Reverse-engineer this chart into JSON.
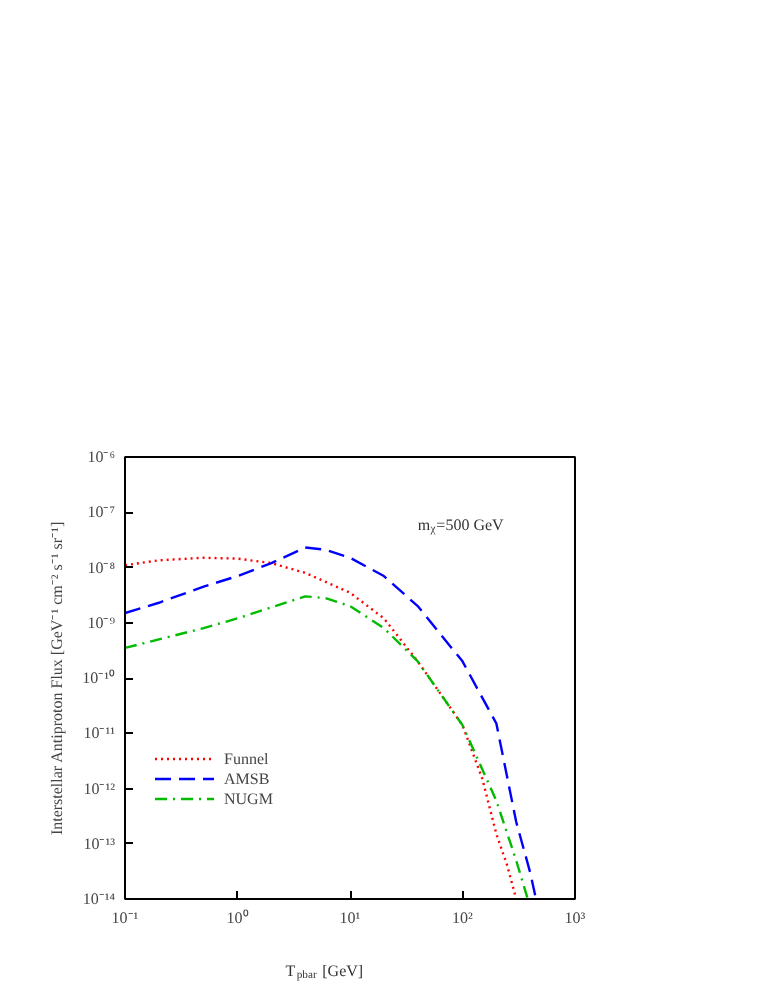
{
  "chart_data": {
    "type": "line",
    "xlabel": "T$_{pbar}$ [GeV]",
    "ylabel": "Interstellar Antiproton Flux [GeV⁻¹ cm⁻² s⁻¹ sr⁻¹]",
    "log": "xy",
    "legend": "left",
    "grid": false,
    "xlim": [
      0.1,
      1000
    ],
    "ylim": [
      1e-14,
      1e-06
    ],
    "xticks": [
      {
        "value": 0.1,
        "label": "10⁻¹"
      },
      {
        "value": 1,
        "label": "10⁰"
      },
      {
        "value": 10,
        "label": "10¹"
      },
      {
        "value": 100,
        "label": "10²"
      },
      {
        "value": 1000,
        "label": "10³"
      }
    ],
    "yticks": [
      {
        "value": 1e-14,
        "label": "10⁻¹⁴"
      },
      {
        "value": 1e-13,
        "label": "10⁻¹³"
      },
      {
        "value": 1e-12,
        "label": "10⁻¹²"
      },
      {
        "value": 1e-11,
        "label": "10⁻¹¹"
      },
      {
        "value": 1e-10,
        "label": "10⁻¹⁰"
      },
      {
        "value": 1e-09,
        "label": "10⁻⁹"
      },
      {
        "value": 1e-08,
        "label": "10⁻⁸"
      },
      {
        "value": 1e-07,
        "label": "10⁻⁷"
      },
      {
        "value": 1e-06,
        "label": "10⁻⁶"
      }
    ],
    "annotations": [
      "m$_{χ}$=500 GeV"
    ],
    "series": [
      {
        "name": "Funnel",
        "color": "#ff0000",
        "line_style": "dotted",
        "x": [
          0.1,
          0.2,
          0.5,
          1,
          2,
          4,
          10,
          20,
          40,
          100,
          150,
          200,
          250,
          300
        ],
        "values": [
          1.1e-08,
          1.35e-08,
          1.5e-08,
          1.45e-08,
          1.2e-08,
          8e-09,
          3.5e-09,
          1.2e-09,
          2e-10,
          1.4e-11,
          1.5e-12,
          1.5e-13,
          4e-14,
          1e-14
        ]
      },
      {
        "name": "AMSB",
        "color": "#0000ff",
        "line_style": "dashed",
        "x": [
          0.1,
          0.2,
          0.5,
          1,
          2,
          4,
          6,
          10,
          20,
          40,
          100,
          200,
          300,
          400,
          450
        ],
        "values": [
          1.5e-09,
          2.3e-09,
          4.5e-09,
          7e-09,
          1.2e-08,
          2.3e-08,
          2.1e-08,
          1.5e-08,
          7e-09,
          2e-09,
          2e-10,
          1.5e-11,
          2.5e-13,
          3e-14,
          1e-14
        ]
      },
      {
        "name": "NUGM",
        "color": "#00bb00",
        "line_style": "dashdot",
        "x": [
          0.1,
          0.2,
          0.5,
          1,
          2,
          4,
          6,
          10,
          20,
          40,
          100,
          200,
          300,
          380
        ],
        "values": [
          3.5e-10,
          5e-10,
          8e-10,
          1.2e-09,
          1.9e-09,
          3e-09,
          2.8e-09,
          2e-09,
          8e-10,
          2e-10,
          1.4e-11,
          6e-13,
          5e-14,
          1e-14
        ]
      }
    ]
  }
}
